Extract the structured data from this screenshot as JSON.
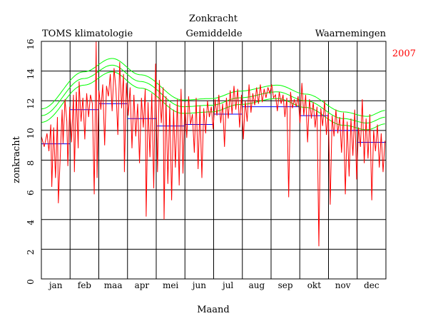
{
  "chart_data": {
    "type": "line",
    "title": "Zonkracht",
    "xlabel": "Maand",
    "ylabel": "zonkracht",
    "year_label": "2007",
    "ylim": [
      0,
      16
    ],
    "yticks": [
      "0",
      "2",
      "4",
      "6",
      "8",
      "10",
      "12",
      "14",
      "16"
    ],
    "grid": true,
    "legend": [
      {
        "name": "TOMS klimatologie",
        "color": "#00ff00"
      },
      {
        "name": "Gemiddelde",
        "color": "#0000ff"
      },
      {
        "name": "Waarnemingen",
        "color": "#ff0000"
      }
    ],
    "months": [
      "jan",
      "feb",
      "maa",
      "apr",
      "mei",
      "jun",
      "jul",
      "aug",
      "sep",
      "okt",
      "nov",
      "dec"
    ],
    "monthly_mean": [
      9.1,
      11.4,
      11.8,
      10.8,
      10.3,
      10.4,
      11.1,
      11.6,
      11.6,
      11.0,
      10.0,
      9.2
    ],
    "climatology": {
      "centre": {
        "min_day": 0,
        "min_value": 11.0,
        "bands": [
          {
            "day": 0,
            "value": 11.0
          },
          {
            "day": 45,
            "value": 13.5
          },
          {
            "day": 75,
            "value": 14.4
          },
          {
            "day": 105,
            "value": 13.3
          },
          {
            "day": 150,
            "value": 11.6
          },
          {
            "day": 180,
            "value": 11.7
          },
          {
            "day": 210,
            "value": 12.2
          },
          {
            "day": 250,
            "value": 12.6
          },
          {
            "day": 280,
            "value": 12.0
          },
          {
            "day": 320,
            "value": 10.8
          },
          {
            "day": 345,
            "value": 10.5
          },
          {
            "day": 365,
            "value": 10.9
          }
        ]
      },
      "band_offsets": [
        -0.45,
        0,
        0.45
      ]
    },
    "observations": {
      "days": 365,
      "samples": [
        [
          0,
          9.6
        ],
        [
          3,
          8.9
        ],
        [
          6,
          9.8
        ],
        [
          8,
          8.6
        ],
        [
          10,
          10.4
        ],
        [
          11,
          6.2
        ],
        [
          13,
          10.2
        ],
        [
          15,
          6.8
        ],
        [
          17,
          10.9
        ],
        [
          18,
          5.1
        ],
        [
          20,
          8.3
        ],
        [
          22,
          11.4
        ],
        [
          23,
          9.1
        ],
        [
          25,
          12.1
        ],
        [
          27,
          10.6
        ],
        [
          28,
          7.6
        ],
        [
          30,
          11.6
        ],
        [
          32,
          9.2
        ],
        [
          34,
          12.4
        ],
        [
          35,
          7.2
        ],
        [
          37,
          12.6
        ],
        [
          39,
          8.8
        ],
        [
          40,
          13.3
        ],
        [
          42,
          10.6
        ],
        [
          44,
          12.2
        ],
        [
          46,
          9.4
        ],
        [
          48,
          12.5
        ],
        [
          50,
          10.9
        ],
        [
          52,
          12.4
        ],
        [
          54,
          11.8
        ],
        [
          56,
          5.7
        ],
        [
          58,
          16.0
        ],
        [
          59,
          6.8
        ],
        [
          61,
          12.7
        ],
        [
          63,
          11.4
        ],
        [
          65,
          13.1
        ],
        [
          67,
          9.0
        ],
        [
          69,
          13.0
        ],
        [
          71,
          12.3
        ],
        [
          73,
          13.8
        ],
        [
          75,
          11.3
        ],
        [
          77,
          14.2
        ],
        [
          79,
          12.8
        ],
        [
          81,
          9.7
        ],
        [
          83,
          14.6
        ],
        [
          85,
          11.5
        ],
        [
          87,
          13.8
        ],
        [
          88,
          7.2
        ],
        [
          90,
          13.2
        ],
        [
          92,
          11.0
        ],
        [
          94,
          12.9
        ],
        [
          96,
          8.8
        ],
        [
          98,
          12.4
        ],
        [
          100,
          9.6
        ],
        [
          102,
          11.8
        ],
        [
          104,
          7.8
        ],
        [
          106,
          12.2
        ],
        [
          108,
          10.2
        ],
        [
          110,
          12.8
        ],
        [
          111,
          4.2
        ],
        [
          113,
          11.9
        ],
        [
          115,
          8.2
        ],
        [
          117,
          12.5
        ],
        [
          119,
          6.1
        ],
        [
          121,
          14.5
        ],
        [
          123,
          7.2
        ],
        [
          125,
          13.4
        ],
        [
          127,
          10.5
        ],
        [
          129,
          12.9
        ],
        [
          130,
          4.0
        ],
        [
          132,
          12.3
        ],
        [
          134,
          6.4
        ],
        [
          136,
          11.8
        ],
        [
          138,
          5.3
        ],
        [
          140,
          11.4
        ],
        [
          142,
          7.5
        ],
        [
          144,
          12.1
        ],
        [
          146,
          6.3
        ],
        [
          148,
          12.8
        ],
        [
          150,
          7.1
        ],
        [
          152,
          11.9
        ],
        [
          154,
          9.5
        ],
        [
          156,
          12.3
        ],
        [
          158,
          10.4
        ],
        [
          160,
          11.1
        ],
        [
          162,
          8.5
        ],
        [
          164,
          12.2
        ],
        [
          166,
          7.4
        ],
        [
          168,
          11.7
        ],
        [
          170,
          6.8
        ],
        [
          172,
          11.5
        ],
        [
          174,
          9.8
        ],
        [
          176,
          12.0
        ],
        [
          178,
          10.9
        ],
        [
          180,
          11.6
        ],
        [
          182,
          10.1
        ],
        [
          184,
          12.1
        ],
        [
          186,
          11.0
        ],
        [
          188,
          12.4
        ],
        [
          190,
          10.5
        ],
        [
          192,
          11.8
        ],
        [
          194,
          8.9
        ],
        [
          196,
          12.2
        ],
        [
          198,
          10.8
        ],
        [
          200,
          12.7
        ],
        [
          202,
          11.1
        ],
        [
          204,
          13.0
        ],
        [
          206,
          11.4
        ],
        [
          208,
          12.8
        ],
        [
          210,
          10.2
        ],
        [
          212,
          12.4
        ],
        [
          214,
          9.4
        ],
        [
          216,
          12.0
        ],
        [
          218,
          10.6
        ],
        [
          220,
          13.1
        ],
        [
          222,
          11.2
        ],
        [
          224,
          12.5
        ],
        [
          226,
          11.7
        ],
        [
          228,
          12.9
        ],
        [
          230,
          11.8
        ],
        [
          232,
          13.1
        ],
        [
          234,
          11.9
        ],
        [
          236,
          12.8
        ],
        [
          238,
          12.2
        ],
        [
          240,
          12.9
        ],
        [
          242,
          12.5
        ],
        [
          244,
          13.1
        ],
        [
          246,
          12.2
        ],
        [
          248,
          12.4
        ],
        [
          250,
          11.3
        ],
        [
          252,
          12.6
        ],
        [
          254,
          11.8
        ],
        [
          256,
          12.4
        ],
        [
          258,
          10.9
        ],
        [
          260,
          12.2
        ],
        [
          262,
          5.5
        ],
        [
          264,
          12.6
        ],
        [
          266,
          11.5
        ],
        [
          268,
          12.1
        ],
        [
          270,
          11.6
        ],
        [
          272,
          12.3
        ],
        [
          274,
          10.5
        ],
        [
          276,
          13.2
        ],
        [
          278,
          11.0
        ],
        [
          280,
          12.4
        ],
        [
          282,
          9.2
        ],
        [
          284,
          12.1
        ],
        [
          286,
          10.8
        ],
        [
          288,
          11.9
        ],
        [
          290,
          10.2
        ],
        [
          292,
          11.6
        ],
        [
          294,
          2.2
        ],
        [
          296,
          11.5
        ],
        [
          298,
          10.3
        ],
        [
          300,
          12.0
        ],
        [
          302,
          9.7
        ],
        [
          304,
          11.2
        ],
        [
          306,
          5.0
        ],
        [
          308,
          11.0
        ],
        [
          310,
          9.6
        ],
        [
          312,
          11.4
        ],
        [
          314,
          9.8
        ],
        [
          316,
          10.9
        ],
        [
          318,
          8.5
        ],
        [
          320,
          11.2
        ],
        [
          322,
          5.7
        ],
        [
          324,
          10.6
        ],
        [
          326,
          6.9
        ],
        [
          328,
          10.8
        ],
        [
          330,
          8.3
        ],
        [
          332,
          11.4
        ],
        [
          334,
          6.7
        ],
        [
          336,
          10.2
        ],
        [
          338,
          8.9
        ],
        [
          340,
          12.1
        ],
        [
          342,
          7.8
        ],
        [
          344,
          10.8
        ],
        [
          346,
          8.1
        ],
        [
          348,
          11.1
        ],
        [
          350,
          5.3
        ],
        [
          352,
          10.0
        ],
        [
          354,
          8.6
        ],
        [
          356,
          10.4
        ],
        [
          358,
          7.5
        ],
        [
          360,
          9.8
        ],
        [
          362,
          7.2
        ],
        [
          364,
          9.3
        ]
      ]
    }
  }
}
